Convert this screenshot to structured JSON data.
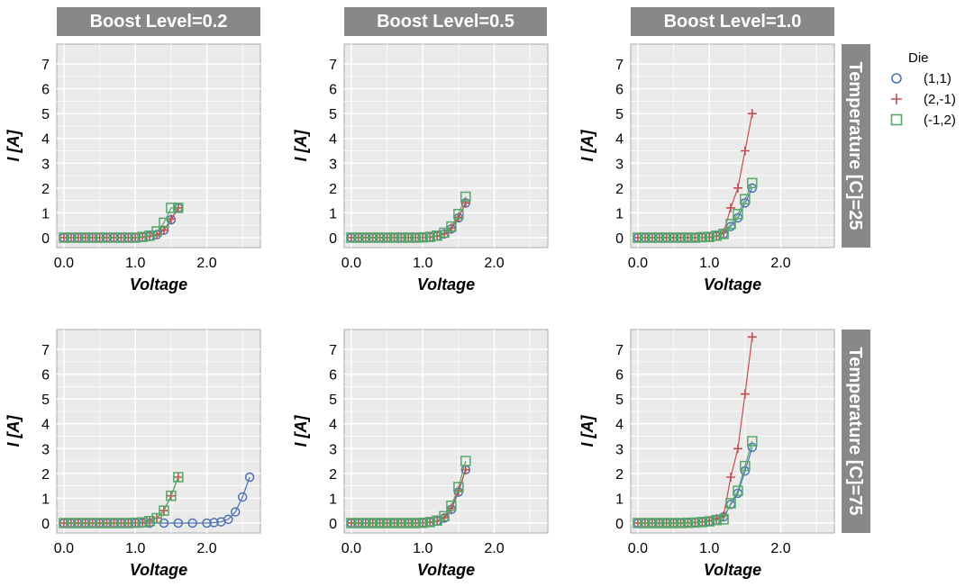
{
  "figure": {
    "col_titles": [
      "Boost Level=0.2",
      "Boost Level=0.5",
      "Boost Level=1.0"
    ],
    "row_titles": [
      "Temperature [C]=25",
      "Temperature [C]=75"
    ],
    "legend_title": "Die",
    "legend": [
      {
        "label": "(1,1)",
        "color": "#4C72B0",
        "marker": "circle"
      },
      {
        "label": "(2,-1)",
        "color": "#C44E52",
        "marker": "plus"
      },
      {
        "label": "(-1,2)",
        "color": "#55A868",
        "marker": "square"
      }
    ],
    "colors": {
      "panel_bg": "#EAEAEA",
      "strip_bg": "#888888",
      "grid": "#FFFFFF",
      "frame": "#AAAAAA"
    }
  },
  "chart_data": [
    {
      "type": "line",
      "row": 0,
      "col": 0,
      "facet": "Boost Level=0.2 / Temperature [C]=25",
      "xlabel": "Voltage",
      "ylabel": "I [A]",
      "xlim": [
        -0.1,
        2.75
      ],
      "ylim": [
        -0.4,
        7.8
      ],
      "xticks": [
        "0.0",
        "1.0",
        "2.0"
      ],
      "xtick_values": [
        0,
        1,
        2
      ],
      "yticks": [
        "0",
        "1",
        "2",
        "3",
        "4",
        "5",
        "6",
        "7"
      ],
      "ytick_values": [
        0,
        1,
        2,
        3,
        4,
        5,
        6,
        7
      ],
      "grid": true,
      "series": [
        {
          "name": "(1,1)",
          "x": [
            0,
            0.1,
            0.2,
            0.3,
            0.4,
            0.5,
            0.6,
            0.7,
            0.8,
            0.9,
            1.0,
            1.1,
            1.2,
            1.3,
            1.4,
            1.5,
            1.6
          ],
          "y": [
            0,
            0,
            0,
            0,
            0,
            0,
            0,
            0,
            0,
            0,
            0,
            0.02,
            0.05,
            0.12,
            0.3,
            0.72,
            1.2
          ]
        },
        {
          "name": "(2,-1)",
          "x": [
            0,
            0.1,
            0.2,
            0.3,
            0.4,
            0.5,
            0.6,
            0.7,
            0.8,
            0.9,
            1.0,
            1.1,
            1.2,
            1.3,
            1.4,
            1.5,
            1.6
          ],
          "y": [
            0,
            0,
            0,
            0,
            0,
            0,
            0,
            0,
            0,
            0,
            0,
            0.02,
            0.05,
            0.12,
            0.3,
            0.75,
            1.2
          ]
        },
        {
          "name": "(-1,2)",
          "x": [
            0,
            0.1,
            0.2,
            0.3,
            0.4,
            0.5,
            0.6,
            0.7,
            0.8,
            0.9,
            1.0,
            1.1,
            1.2,
            1.3,
            1.4,
            1.5,
            1.6
          ],
          "y": [
            0,
            0,
            0,
            0,
            0,
            0,
            0,
            0,
            0,
            0,
            0,
            0.03,
            0.08,
            0.25,
            0.6,
            1.2,
            1.2
          ]
        }
      ]
    },
    {
      "type": "line",
      "row": 0,
      "col": 1,
      "facet": "Boost Level=0.5 / Temperature [C]=25",
      "xlabel": "Voltage",
      "ylabel": "I [A]",
      "xlim": [
        -0.1,
        2.75
      ],
      "ylim": [
        -0.4,
        7.8
      ],
      "xticks": [
        "0.0",
        "1.0",
        "2.0"
      ],
      "xtick_values": [
        0,
        1,
        2
      ],
      "yticks": [
        "0",
        "1",
        "2",
        "3",
        "4",
        "5",
        "6",
        "7"
      ],
      "ytick_values": [
        0,
        1,
        2,
        3,
        4,
        5,
        6,
        7
      ],
      "grid": true,
      "series": [
        {
          "name": "(1,1)",
          "x": [
            0,
            0.1,
            0.2,
            0.3,
            0.4,
            0.5,
            0.6,
            0.7,
            0.8,
            0.9,
            1.0,
            1.1,
            1.2,
            1.3,
            1.4,
            1.5,
            1.6
          ],
          "y": [
            0,
            0,
            0,
            0,
            0,
            0,
            0,
            0,
            0,
            0,
            0.01,
            0.02,
            0.06,
            0.15,
            0.35,
            0.8,
            1.4
          ]
        },
        {
          "name": "(2,-1)",
          "x": [
            0,
            0.1,
            0.2,
            0.3,
            0.4,
            0.5,
            0.6,
            0.7,
            0.8,
            0.9,
            1.0,
            1.1,
            1.2,
            1.3,
            1.4,
            1.5,
            1.6
          ],
          "y": [
            0,
            0,
            0,
            0,
            0,
            0,
            0,
            0,
            0,
            0,
            0.01,
            0.02,
            0.06,
            0.15,
            0.38,
            0.82,
            1.4
          ]
        },
        {
          "name": "(-1,2)",
          "x": [
            0,
            0.1,
            0.2,
            0.3,
            0.4,
            0.5,
            0.6,
            0.7,
            0.8,
            0.9,
            1.0,
            1.1,
            1.2,
            1.3,
            1.4,
            1.5,
            1.6
          ],
          "y": [
            0,
            0,
            0,
            0,
            0,
            0,
            0,
            0,
            0,
            0,
            0.01,
            0.03,
            0.08,
            0.2,
            0.45,
            0.95,
            1.65
          ]
        }
      ]
    },
    {
      "type": "line",
      "row": 0,
      "col": 2,
      "facet": "Boost Level=1.0 / Temperature [C]=25",
      "xlabel": "Voltage",
      "ylabel": "I [A]",
      "xlim": [
        -0.1,
        2.75
      ],
      "ylim": [
        -0.4,
        7.8
      ],
      "xticks": [
        "0.0",
        "1.0",
        "2.0"
      ],
      "xtick_values": [
        0,
        1,
        2
      ],
      "yticks": [
        "0",
        "1",
        "2",
        "3",
        "4",
        "5",
        "6",
        "7"
      ],
      "ytick_values": [
        0,
        1,
        2,
        3,
        4,
        5,
        6,
        7
      ],
      "grid": true,
      "series": [
        {
          "name": "(1,1)",
          "x": [
            0,
            0.1,
            0.2,
            0.3,
            0.4,
            0.5,
            0.6,
            0.7,
            0.8,
            0.9,
            1.0,
            1.1,
            1.2,
            1.3,
            1.4,
            1.5,
            1.6
          ],
          "y": [
            0,
            0,
            0,
            0,
            0,
            0,
            0,
            0,
            0,
            0.01,
            0.02,
            0.06,
            0.15,
            0.45,
            0.8,
            1.4,
            2.0
          ]
        },
        {
          "name": "(2,-1)",
          "x": [
            0,
            0.1,
            0.2,
            0.3,
            0.4,
            0.5,
            0.6,
            0.7,
            0.8,
            0.9,
            1.0,
            1.1,
            1.2,
            1.3,
            1.4,
            1.5,
            1.6
          ],
          "y": [
            0,
            0,
            0,
            0,
            0,
            0,
            0,
            0,
            0,
            0.01,
            0.02,
            0.06,
            0.2,
            1.2,
            2.0,
            3.5,
            5.0
          ]
        },
        {
          "name": "(-1,2)",
          "x": [
            0,
            0.1,
            0.2,
            0.3,
            0.4,
            0.5,
            0.6,
            0.7,
            0.8,
            0.9,
            1.0,
            1.1,
            1.2,
            1.3,
            1.4,
            1.5,
            1.6
          ],
          "y": [
            0,
            0,
            0,
            0,
            0,
            0,
            0,
            0,
            0,
            0.02,
            0.03,
            0.08,
            0.15,
            0.55,
            0.95,
            1.55,
            2.2
          ]
        }
      ]
    },
    {
      "type": "line",
      "row": 1,
      "col": 0,
      "facet": "Boost Level=0.2 / Temperature [C]=75",
      "xlabel": "Voltage",
      "ylabel": "I [A]",
      "xlim": [
        -0.1,
        2.75
      ],
      "ylim": [
        -0.4,
        7.8
      ],
      "xticks": [
        "0.0",
        "1.0",
        "2.0"
      ],
      "xtick_values": [
        0,
        1,
        2
      ],
      "yticks": [
        "0",
        "1",
        "2",
        "3",
        "4",
        "5",
        "6",
        "7"
      ],
      "ytick_values": [
        0,
        1,
        2,
        3,
        4,
        5,
        6,
        7
      ],
      "grid": true,
      "series": [
        {
          "name": "(1,1)",
          "x": [
            0,
            0.1,
            0.2,
            0.3,
            0.4,
            0.5,
            0.6,
            0.7,
            0.8,
            0.9,
            1.0,
            1.1,
            1.2,
            1.4,
            1.6,
            1.8,
            2.0,
            2.1,
            2.2,
            2.3,
            2.4,
            2.5,
            2.6
          ],
          "y": [
            0,
            0,
            0,
            0,
            0,
            0,
            0,
            0,
            0,
            0,
            0,
            0,
            0,
            0,
            0,
            0,
            0,
            0.02,
            0.05,
            0.15,
            0.45,
            1.05,
            1.85
          ]
        },
        {
          "name": "(2,-1)",
          "x": [
            0,
            0.1,
            0.2,
            0.3,
            0.4,
            0.5,
            0.6,
            0.7,
            0.8,
            0.9,
            1.0,
            1.1,
            1.2,
            1.3,
            1.4,
            1.5,
            1.6
          ],
          "y": [
            0,
            0,
            0,
            0,
            0,
            0,
            0,
            0,
            0,
            0,
            0.01,
            0.03,
            0.08,
            0.2,
            0.5,
            1.1,
            1.85
          ]
        },
        {
          "name": "(-1,2)",
          "x": [
            0,
            0.1,
            0.2,
            0.3,
            0.4,
            0.5,
            0.6,
            0.7,
            0.8,
            0.9,
            1.0,
            1.1,
            1.2,
            1.3,
            1.4,
            1.5,
            1.6
          ],
          "y": [
            0,
            0,
            0,
            0,
            0,
            0,
            0,
            0,
            0,
            0,
            0.01,
            0.03,
            0.08,
            0.2,
            0.5,
            1.1,
            1.85
          ]
        }
      ]
    },
    {
      "type": "line",
      "row": 1,
      "col": 1,
      "facet": "Boost Level=0.5 / Temperature [C]=75",
      "xlabel": "Voltage",
      "ylabel": "I [A]",
      "xlim": [
        -0.1,
        2.75
      ],
      "ylim": [
        -0.4,
        7.8
      ],
      "xticks": [
        "0.0",
        "1.0",
        "2.0"
      ],
      "xtick_values": [
        0,
        1,
        2
      ],
      "yticks": [
        "0",
        "1",
        "2",
        "3",
        "4",
        "5",
        "6",
        "7"
      ],
      "ytick_values": [
        0,
        1,
        2,
        3,
        4,
        5,
        6,
        7
      ],
      "grid": true,
      "series": [
        {
          "name": "(1,1)",
          "x": [
            0,
            0.1,
            0.2,
            0.3,
            0.4,
            0.5,
            0.6,
            0.7,
            0.8,
            0.9,
            1.0,
            1.1,
            1.2,
            1.3,
            1.4,
            1.5,
            1.6
          ],
          "y": [
            0,
            0,
            0,
            0,
            0,
            0,
            0,
            0,
            0,
            0,
            0.01,
            0.03,
            0.08,
            0.2,
            0.55,
            1.25,
            2.15
          ]
        },
        {
          "name": "(2,-1)",
          "x": [
            0,
            0.1,
            0.2,
            0.3,
            0.4,
            0.5,
            0.6,
            0.7,
            0.8,
            0.9,
            1.0,
            1.1,
            1.2,
            1.3,
            1.4,
            1.5,
            1.6
          ],
          "y": [
            0,
            0,
            0,
            0,
            0,
            0,
            0,
            0,
            0,
            0,
            0.01,
            0.03,
            0.08,
            0.22,
            0.6,
            1.3,
            2.15
          ]
        },
        {
          "name": "(-1,2)",
          "x": [
            0,
            0.1,
            0.2,
            0.3,
            0.4,
            0.5,
            0.6,
            0.7,
            0.8,
            0.9,
            1.0,
            1.1,
            1.2,
            1.3,
            1.4,
            1.5,
            1.6
          ],
          "y": [
            0,
            0,
            0,
            0,
            0,
            0,
            0,
            0,
            0,
            0,
            0.01,
            0.04,
            0.1,
            0.28,
            0.7,
            1.45,
            2.5
          ]
        }
      ]
    },
    {
      "type": "line",
      "row": 1,
      "col": 2,
      "facet": "Boost Level=1.0 / Temperature [C]=75",
      "xlabel": "Voltage",
      "ylabel": "I [A]",
      "xlim": [
        -0.1,
        2.75
      ],
      "ylim": [
        -0.4,
        7.8
      ],
      "xticks": [
        "0.0",
        "1.0",
        "2.0"
      ],
      "xtick_values": [
        0,
        1,
        2
      ],
      "yticks": [
        "0",
        "1",
        "2",
        "3",
        "4",
        "5",
        "6",
        "7"
      ],
      "ytick_values": [
        0,
        1,
        2,
        3,
        4,
        5,
        6,
        7
      ],
      "grid": true,
      "series": [
        {
          "name": "(1,1)",
          "x": [
            0,
            0.1,
            0.2,
            0.3,
            0.4,
            0.5,
            0.6,
            0.7,
            0.8,
            0.9,
            1.0,
            1.1,
            1.2,
            1.3,
            1.4,
            1.5,
            1.6
          ],
          "y": [
            0,
            0,
            0,
            0,
            0,
            0,
            0,
            0.01,
            0.02,
            0.04,
            0.07,
            0.12,
            0.25,
            0.75,
            1.2,
            2.1,
            3.05
          ]
        },
        {
          "name": "(2,-1)",
          "x": [
            0,
            0.1,
            0.2,
            0.3,
            0.4,
            0.5,
            0.6,
            0.7,
            0.8,
            0.9,
            1.0,
            1.1,
            1.2,
            1.3,
            1.4,
            1.5,
            1.6
          ],
          "y": [
            0,
            0,
            0,
            0,
            0,
            0,
            0,
            0.01,
            0.02,
            0.05,
            0.1,
            0.18,
            0.3,
            1.85,
            3.0,
            5.2,
            7.5
          ]
        },
        {
          "name": "(-1,2)",
          "x": [
            0,
            0.1,
            0.2,
            0.3,
            0.4,
            0.5,
            0.6,
            0.7,
            0.8,
            0.9,
            1.0,
            1.1,
            1.2,
            1.3,
            1.4,
            1.5,
            1.6
          ],
          "y": [
            0,
            0,
            0,
            0,
            0,
            0,
            0,
            0.01,
            0.02,
            0.04,
            0.07,
            0.12,
            0.15,
            0.8,
            1.3,
            2.3,
            3.3
          ]
        }
      ]
    }
  ]
}
